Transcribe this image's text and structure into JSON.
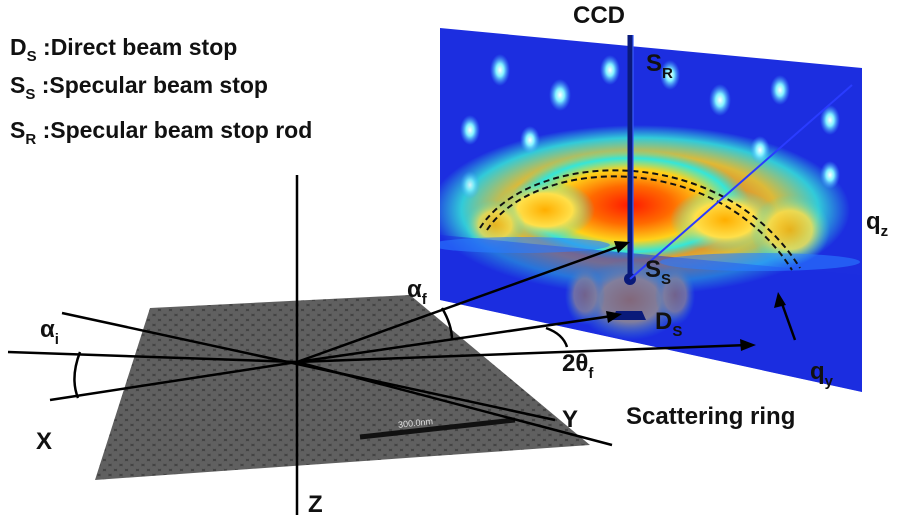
{
  "legend": [
    {
      "symbol": "D",
      "sub": "S",
      "text": ":Direct beam stop"
    },
    {
      "symbol": "S",
      "sub": "S",
      "text": ":Specular beam stop"
    },
    {
      "symbol": "S",
      "sub": "R",
      "text": ":Specular beam stop rod"
    }
  ],
  "labels": {
    "ccd": "CCD",
    "sr": {
      "main": "S",
      "sub": "R"
    },
    "qz": {
      "main": "q",
      "sub": "z"
    },
    "ss": {
      "main": "S",
      "sub": "S"
    },
    "ds": {
      "main": "D",
      "sub": "S"
    },
    "alpha_f": {
      "main": "α",
      "sub": "f"
    },
    "alpha_i": {
      "main": "α",
      "sub": "i"
    },
    "two_theta_f": {
      "main": "2θ",
      "sub": "f"
    },
    "qy": {
      "main": "q",
      "sub": "y"
    },
    "x_axis": "X",
    "y_axis": "Y",
    "z_axis": "Z",
    "scattering_ring": "Scattering ring",
    "scale_bar": "300.0nm"
  },
  "colors": {
    "detector_background": "#1c2ee0",
    "intensity_hot": "#ff2a00",
    "intensity_warm": "#ffd21a",
    "intensity_mid": "#35e6d8",
    "sample_surface": "#5a5a5a"
  }
}
